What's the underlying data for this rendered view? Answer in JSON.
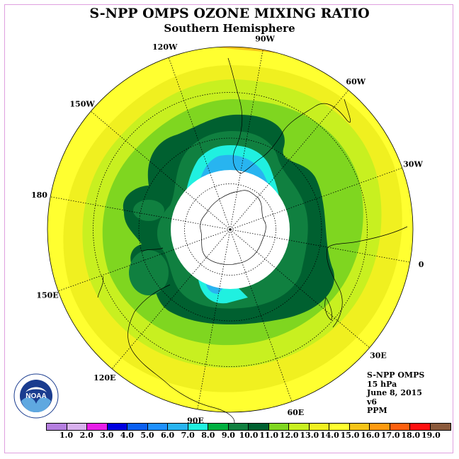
{
  "title": "S-NPP OMPS OZONE MIXING RATIO",
  "subtitle": "Southern Hemisphere",
  "longitude_labels": [
    {
      "lon": 90,
      "text": "90W"
    },
    {
      "lon": 60,
      "text": "60W"
    },
    {
      "lon": 30,
      "text": "30W"
    },
    {
      "lon": 0,
      "text": "0"
    },
    {
      "lon": -30,
      "text": "30E"
    },
    {
      "lon": -60,
      "text": "60E"
    },
    {
      "lon": -90,
      "text": "90E"
    },
    {
      "lon": -120,
      "text": "120E"
    },
    {
      "lon": -150,
      "text": "150E"
    },
    {
      "lon": 180,
      "text": "180"
    },
    {
      "lon": 150,
      "text": "150W"
    },
    {
      "lon": 120,
      "text": "120W"
    }
  ],
  "info": {
    "instrument": "S-NPP OMPS",
    "level": "15 hPa",
    "date": "June 8, 2015",
    "version": "v6",
    "units": "PPM"
  },
  "logo_text": "NOAA",
  "legend": {
    "colors": [
      "#b57fe0",
      "#d8b0ee",
      "#e81ee8",
      "#0000e0",
      "#0a5ff0",
      "#1e90ff",
      "#28b4f0",
      "#20f0e0",
      "#00b040",
      "#108040",
      "#006030",
      "#7fd620",
      "#c8f020",
      "#f0f020",
      "#ffff30",
      "#f5c418",
      "#ff9a10",
      "#ff6010",
      "#ff1010",
      "#8b5a3c"
    ],
    "labels": [
      "1.0",
      "2.0",
      "3.0",
      "4.0",
      "5.0",
      "6.0",
      "7.0",
      "8.0",
      "9.0",
      "10.0",
      "11.0",
      "12.0",
      "13.0",
      "14.0",
      "15.0",
      "16.0",
      "17.0",
      "18.0",
      "19.0"
    ]
  }
}
